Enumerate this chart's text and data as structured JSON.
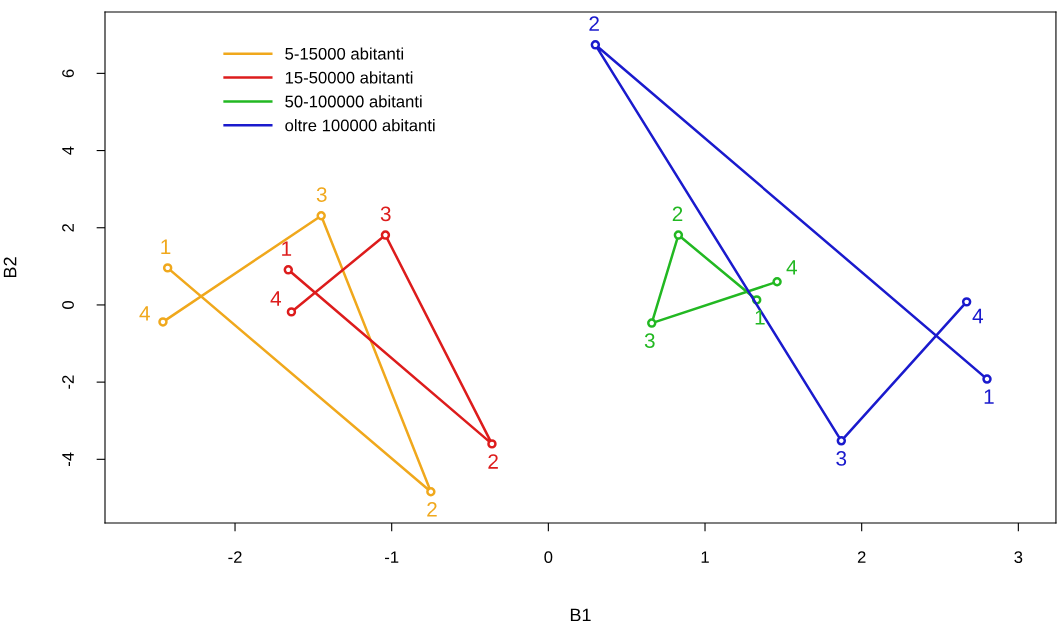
{
  "chart_data": {
    "type": "line",
    "xlabel": "B1",
    "ylabel": "B2",
    "xlim": [
      -2.83,
      3.24
    ],
    "ylim": [
      -5.65,
      7.59
    ],
    "xticks": [
      -2,
      -1,
      0,
      1,
      2,
      3
    ],
    "yticks": [
      -4,
      -2,
      0,
      2,
      4,
      6
    ],
    "grid": false,
    "legend": "top left",
    "marker": "circle",
    "line_style": "solid",
    "series": [
      {
        "name": "5-15000 abitanti",
        "color": "#f0a81c",
        "x": [
          -2.43,
          -0.75,
          -1.45,
          -2.46
        ],
        "values": [
          0.96,
          -4.84,
          2.31,
          -0.44
        ]
      },
      {
        "name": "15-50000 abitanti",
        "color": "#dd1c1c",
        "x": [
          -1.66,
          -0.36,
          -1.04,
          -1.64
        ],
        "values": [
          0.91,
          -3.6,
          1.81,
          -0.18
        ]
      },
      {
        "name": "50-100000 abitanti",
        "color": "#22b822",
        "x": [
          1.33,
          0.83,
          0.66,
          1.46
        ],
        "values": [
          0.13,
          1.81,
          -0.47,
          0.6
        ]
      },
      {
        "name": "oltre 100000 abitanti",
        "color": "#1a1acd",
        "x": [
          2.8,
          0.3,
          1.87,
          2.67
        ],
        "values": [
          -1.92,
          6.74,
          -3.52,
          0.08
        ]
      }
    ],
    "annotations": [
      {
        "text": "1",
        "x": -2.43,
        "y": 0.96
      },
      {
        "text": "2",
        "x": -0.75,
        "y": -4.84
      },
      {
        "text": "3",
        "x": -1.45,
        "y": 2.31
      },
      {
        "text": "4",
        "x": -2.46,
        "y": -0.44
      },
      {
        "text": "1",
        "x": -1.66,
        "y": 0.91
      },
      {
        "text": "2",
        "x": -0.36,
        "y": -3.6
      },
      {
        "text": "3",
        "x": -1.04,
        "y": 1.81
      },
      {
        "text": "4",
        "x": -1.64,
        "y": -0.18
      },
      {
        "text": "1",
        "x": 1.33,
        "y": 0.13
      },
      {
        "text": "2",
        "x": 0.83,
        "y": 1.81
      },
      {
        "text": "3",
        "x": 0.66,
        "y": -0.47
      },
      {
        "text": "4",
        "x": 1.46,
        "y": 0.6
      },
      {
        "text": "1",
        "x": 2.8,
        "y": -1.92
      },
      {
        "text": "2",
        "x": 0.3,
        "y": 6.74
      },
      {
        "text": "3",
        "x": 1.87,
        "y": -3.52
      },
      {
        "text": "4",
        "x": 2.67,
        "y": 0.08
      }
    ]
  }
}
